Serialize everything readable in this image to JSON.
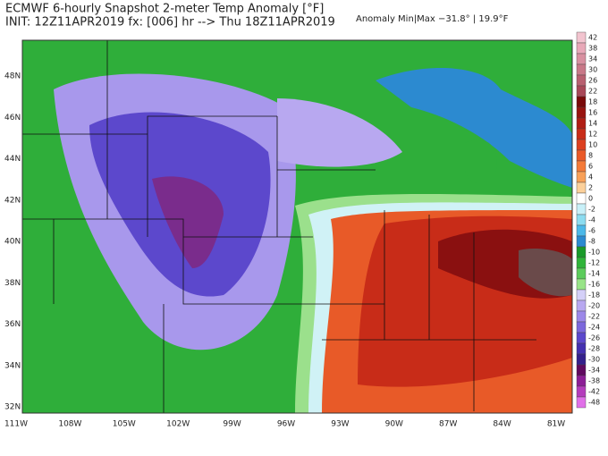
{
  "header": {
    "title": "ECMWF 6-hourly Snapshot 2-meter Temp Anomaly [°F]",
    "init": "INIT: 12Z11APR2019 fx: [006] hr --> Thu 18Z11APR2019",
    "anomaly": "Anomaly Min|Max −31.8° | 19.9°F"
  },
  "map": {
    "lat_labels": [
      "48N",
      "46N",
      "44N",
      "42N",
      "40N",
      "38N",
      "36N",
      "34N",
      "32N"
    ],
    "lon_labels": [
      "111W",
      "108W",
      "105W",
      "102W",
      "99W",
      "96W",
      "93W",
      "90W",
      "87W",
      "84W",
      "81W"
    ]
  },
  "colorbar": {
    "labels": [
      42,
      38,
      34,
      30,
      26,
      22,
      18,
      16,
      14,
      12,
      10,
      8,
      6,
      4,
      2,
      0,
      -2,
      -4,
      -6,
      -8,
      -10,
      -12,
      -14,
      -16,
      -18,
      -20,
      -22,
      -24,
      -26,
      -28,
      -30,
      -34,
      -38,
      -42,
      -48
    ],
    "colors": [
      "#f2c4cf",
      "#e8a8b8",
      "#d890a0",
      "#c87888",
      "#b86070",
      "#a84858",
      "#7a0a0a",
      "#981410",
      "#b01e14",
      "#c82c18",
      "#dc4020",
      "#ea5a28",
      "#f47a38",
      "#f8a058",
      "#fcd09a",
      "#ffffff",
      "#c8f0f8",
      "#8cdcf0",
      "#4cb8e8",
      "#2c8ad0",
      "#1a9a2a",
      "#30b43a",
      "#5ccc5c",
      "#98e488",
      "#d4d0f8",
      "#b8a8f0",
      "#9c88e8",
      "#7c68dc",
      "#5c48cc",
      "#4430b0",
      "#34208c",
      "#600a60",
      "#8c1e96",
      "#b43cbc",
      "#e070e8"
    ]
  }
}
